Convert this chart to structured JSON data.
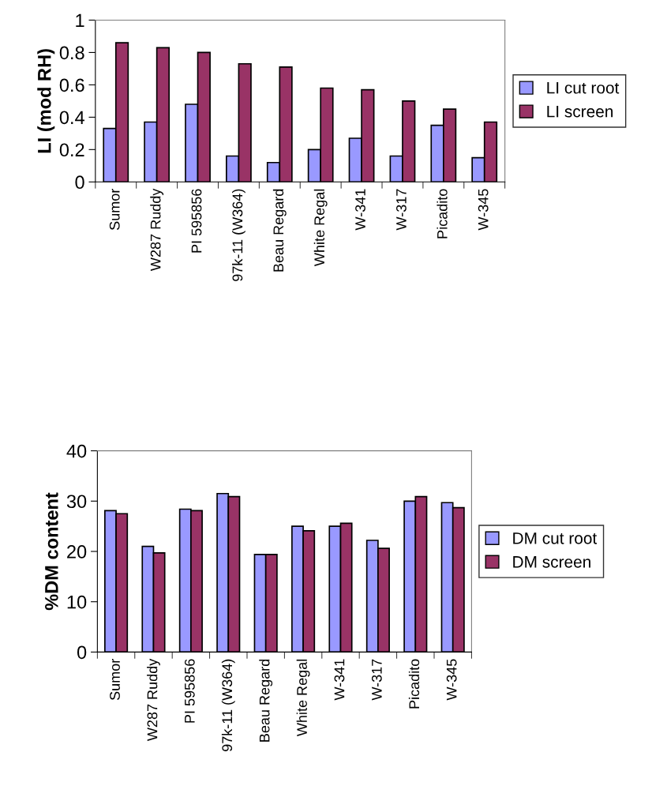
{
  "chart_data": [
    {
      "type": "bar",
      "ylabel": "LI (mod RH)",
      "categories": [
        "Sumor",
        "W287 Ruddy",
        "PI 595856",
        "97k-11 (W364)",
        "Beau Regard",
        "White Regal",
        "W-341",
        "W-317",
        "Picadito",
        "W-345"
      ],
      "series": [
        {
          "name": "LI cut root",
          "color": "#9999ff",
          "values": [
            0.33,
            0.37,
            0.48,
            0.16,
            0.12,
            0.2,
            0.27,
            0.16,
            0.35,
            0.15
          ]
        },
        {
          "name": "LI screen",
          "color": "#993366",
          "values": [
            0.86,
            0.83,
            0.8,
            0.73,
            0.71,
            0.58,
            0.57,
            0.5,
            0.45,
            0.37
          ]
        }
      ],
      "ylim": [
        0,
        1
      ],
      "yticks": [
        0,
        {
          "value": 0.2,
          "label": "0.2"
        },
        {
          "value": 0.4,
          "label": "0.4"
        },
        {
          "value": 0.6,
          "label": "0.6"
        },
        {
          "value": 0.8,
          "label": "0.8"
        },
        1
      ],
      "grid": false,
      "legend": "right"
    },
    {
      "type": "bar",
      "ylabel": "%DM content",
      "categories": [
        "Sumor",
        "W287 Ruddy",
        "PI 595856",
        "97k-11 (W364)",
        "Beau Regard",
        "White Regal",
        "W-341",
        "W-317",
        "Picadito",
        "W-345"
      ],
      "series": [
        {
          "name": "DM cut root",
          "color": "#9999ff",
          "values": [
            28.1,
            21.0,
            28.4,
            31.5,
            19.4,
            25.0,
            25.0,
            22.2,
            30.0,
            29.7
          ]
        },
        {
          "name": "DM screen",
          "color": "#993366",
          "values": [
            27.5,
            19.7,
            28.1,
            30.9,
            19.4,
            24.1,
            25.6,
            20.6,
            30.9,
            28.7
          ]
        }
      ],
      "ylim": [
        0,
        40
      ],
      "yticks": [
        0,
        10,
        20,
        30,
        40
      ],
      "grid": false,
      "legend": "right"
    }
  ]
}
